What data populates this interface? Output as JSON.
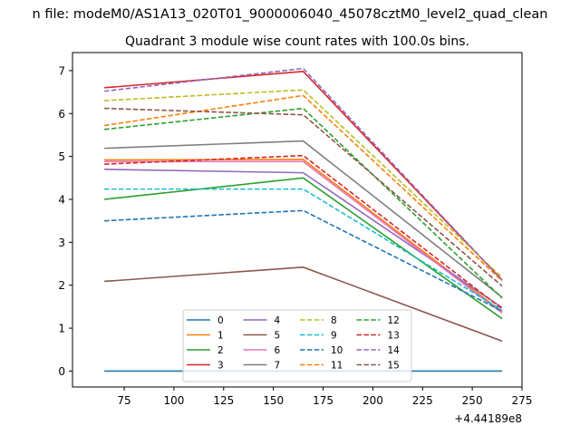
{
  "chart_data": {
    "type": "line",
    "suptitle": "n file: modeM0/AS1A13_020T01_9000006040_45078cztM0_level2_quad_clean",
    "title": "Quadrant 3 module wise count rates with 100.0s bins.",
    "xlabel": "",
    "ylabel": "",
    "offset_text": "+4.44189e8",
    "xlim": [
      49,
      275
    ],
    "ylim": [
      -0.37,
      7.42
    ],
    "x_ticks": [
      75,
      100,
      125,
      150,
      175,
      200,
      225,
      250,
      275
    ],
    "y_ticks": [
      0,
      1,
      2,
      3,
      4,
      5,
      6,
      7
    ],
    "grid": false,
    "legend_position": "lower center",
    "legend_columns": 4,
    "x": [
      65,
      165,
      265
    ],
    "series": [
      {
        "name": "0",
        "color": "#1f77b4",
        "style": "solid",
        "values": [
          0.0,
          0.0,
          0.0
        ]
      },
      {
        "name": "1",
        "color": "#ff7f0e",
        "style": "solid",
        "values": [
          4.92,
          4.93,
          1.38
        ]
      },
      {
        "name": "2",
        "color": "#2ca02c",
        "style": "solid",
        "values": [
          4.0,
          4.5,
          1.22
        ]
      },
      {
        "name": "3",
        "color": "#d62728",
        "style": "solid",
        "values": [
          6.6,
          6.98,
          2.12
        ]
      },
      {
        "name": "4",
        "color": "#9467bd",
        "style": "solid",
        "values": [
          4.7,
          4.62,
          1.48
        ]
      },
      {
        "name": "5",
        "color": "#8c564b",
        "style": "solid",
        "values": [
          2.09,
          2.42,
          0.7
        ]
      },
      {
        "name": "6",
        "color": "#e377c2",
        "style": "solid",
        "values": [
          4.88,
          4.88,
          1.35
        ]
      },
      {
        "name": "7",
        "color": "#7f7f7f",
        "style": "solid",
        "values": [
          5.19,
          5.36,
          1.72
        ]
      },
      {
        "name": "8",
        "color": "#bcbd22",
        "style": "dashed",
        "values": [
          6.3,
          6.55,
          2.18
        ]
      },
      {
        "name": "9",
        "color": "#17becf",
        "style": "dashed",
        "values": [
          4.24,
          4.24,
          1.42
        ]
      },
      {
        "name": "10",
        "color": "#1f77b4",
        "style": "dashed",
        "values": [
          3.5,
          3.74,
          1.4
        ]
      },
      {
        "name": "11",
        "color": "#ff7f0e",
        "style": "dashed",
        "values": [
          5.72,
          6.42,
          2.1
        ]
      },
      {
        "name": "12",
        "color": "#2ca02c",
        "style": "dashed",
        "values": [
          5.63,
          6.12,
          1.7
        ]
      },
      {
        "name": "13",
        "color": "#d62728",
        "style": "dashed",
        "values": [
          4.82,
          5.02,
          1.45
        ]
      },
      {
        "name": "14",
        "color": "#9467bd",
        "style": "dashed",
        "values": [
          6.52,
          7.05,
          2.12
        ]
      },
      {
        "name": "15",
        "color": "#8c564b",
        "style": "dashed",
        "values": [
          6.12,
          5.97,
          1.98
        ]
      }
    ]
  }
}
